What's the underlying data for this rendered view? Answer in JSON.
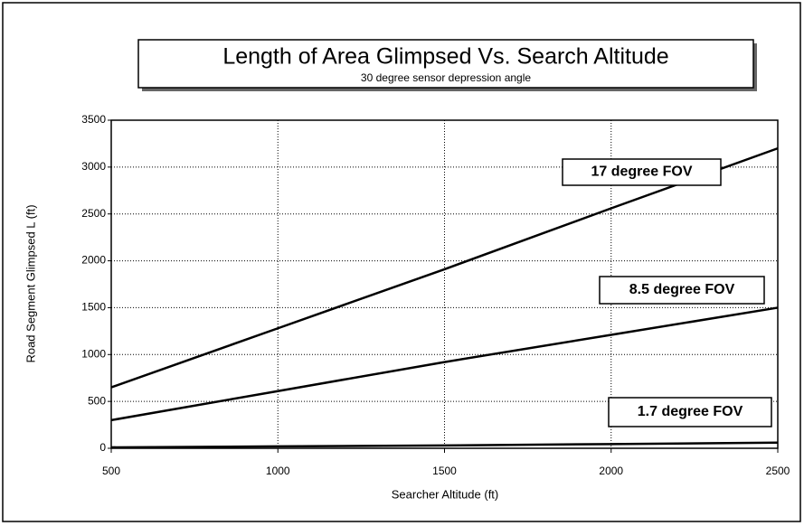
{
  "chart_data": {
    "type": "line",
    "title": "Length of Area Glimpsed Vs. Search Altitude",
    "subtitle": "30 degree sensor depression angle",
    "x_label": "Searcher Altitude (ft)",
    "y_label": "Road Segment Glimpsed L (ft)",
    "x": [
      500,
      1000,
      1500,
      2000,
      2500
    ],
    "series": [
      {
        "name": "17 degree FOV",
        "color": "#000000",
        "values": [
          650,
          1280,
          1910,
          2560,
          3200
        ]
      },
      {
        "name": "8.5 degree FOV",
        "color": "#000000",
        "values": [
          300,
          610,
          920,
          1210,
          1500
        ]
      },
      {
        "name": "1.7 degree FOV",
        "color": "#000000",
        "values": [
          10,
          20,
          30,
          45,
          60
        ]
      }
    ],
    "xlim": [
      500,
      2500
    ],
    "xticks": [
      500,
      1000,
      1500,
      2000,
      2500
    ],
    "ylim": [
      0,
      3500
    ],
    "yticks": [
      0,
      500,
      1000,
      1500,
      2000,
      2500,
      3000,
      3500
    ],
    "grid": true
  }
}
